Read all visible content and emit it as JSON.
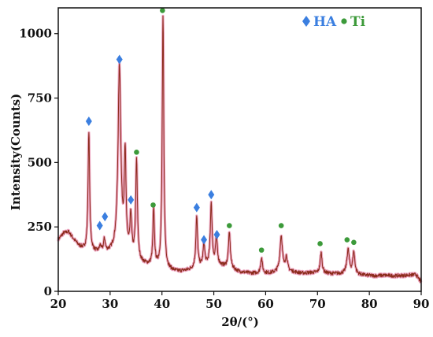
{
  "chart_data": {
    "type": "line",
    "title": "",
    "xlabel": "2θ/(°)",
    "ylabel": "Intensity(Counts)",
    "xlim": [
      20,
      90
    ],
    "ylim": [
      0,
      1100
    ],
    "x_ticks": [
      "20",
      "30",
      "40",
      "50",
      "60",
      "70",
      "80",
      "90"
    ],
    "y_ticks": [
      "0",
      "250",
      "500",
      "750",
      "1000"
    ],
    "grid": false,
    "legend_position": "top-right",
    "colors": {
      "line": "#8b2a1a",
      "shadow": "#e98fb0",
      "ha": "#3b7fe0",
      "ti": "#3c9a3a",
      "axis": "#111111"
    },
    "legend": [
      {
        "name": "HA",
        "marker": "diamond",
        "color": "#3b7fe0"
      },
      {
        "name": "Ti",
        "marker": "circle",
        "color": "#3c9a3a"
      }
    ],
    "baseline": [
      [
        20,
        200
      ],
      [
        21,
        225
      ],
      [
        22,
        230
      ],
      [
        23,
        200
      ],
      [
        24,
        175
      ],
      [
        25,
        160
      ],
      [
        27,
        150
      ],
      [
        29,
        145
      ],
      [
        31,
        150
      ],
      [
        33,
        140
      ],
      [
        35,
        110
      ],
      [
        37,
        100
      ],
      [
        39,
        90
      ],
      [
        41,
        80
      ],
      [
        43,
        75
      ],
      [
        45,
        80
      ],
      [
        47,
        90
      ],
      [
        49,
        100
      ],
      [
        51,
        100
      ],
      [
        53,
        90
      ],
      [
        55,
        75
      ],
      [
        57,
        70
      ],
      [
        59,
        70
      ],
      [
        61,
        70
      ],
      [
        63,
        75
      ],
      [
        65,
        75
      ],
      [
        67,
        70
      ],
      [
        69,
        72
      ],
      [
        71,
        70
      ],
      [
        73,
        68
      ],
      [
        75,
        68
      ],
      [
        77,
        65
      ],
      [
        79,
        62
      ],
      [
        81,
        60
      ],
      [
        83,
        62
      ],
      [
        85,
        60
      ],
      [
        87,
        62
      ],
      [
        89,
        65
      ],
      [
        90,
        35
      ]
    ],
    "peaks": [
      {
        "x": 25.9,
        "y": 620,
        "w": 0.18
      },
      {
        "x": 28.1,
        "y": 170,
        "w": 0.2
      },
      {
        "x": 28.9,
        "y": 195,
        "w": 0.2
      },
      {
        "x": 31.8,
        "y": 870,
        "w": 0.32
      },
      {
        "x": 32.9,
        "y": 510,
        "w": 0.2
      },
      {
        "x": 34.0,
        "y": 280,
        "w": 0.2
      },
      {
        "x": 35.1,
        "y": 500,
        "w": 0.2
      },
      {
        "x": 38.4,
        "y": 310,
        "w": 0.18
      },
      {
        "x": 40.2,
        "y": 1060,
        "w": 0.18
      },
      {
        "x": 46.7,
        "y": 285,
        "w": 0.2
      },
      {
        "x": 48.1,
        "y": 180,
        "w": 0.2
      },
      {
        "x": 49.5,
        "y": 340,
        "w": 0.2
      },
      {
        "x": 50.5,
        "y": 210,
        "w": 0.2
      },
      {
        "x": 53.0,
        "y": 225,
        "w": 0.22
      },
      {
        "x": 59.2,
        "y": 130,
        "w": 0.2
      },
      {
        "x": 63.0,
        "y": 215,
        "w": 0.28
      },
      {
        "x": 64.0,
        "y": 130,
        "w": 0.25
      },
      {
        "x": 70.7,
        "y": 150,
        "w": 0.22
      },
      {
        "x": 75.9,
        "y": 160,
        "w": 0.28
      },
      {
        "x": 77.0,
        "y": 150,
        "w": 0.25
      }
    ],
    "annotations": {
      "ha": [
        {
          "x": 25.9,
          "y": 660
        },
        {
          "x": 28.0,
          "y": 255
        },
        {
          "x": 29.0,
          "y": 290
        },
        {
          "x": 31.8,
          "y": 900
        },
        {
          "x": 34.0,
          "y": 355
        },
        {
          "x": 46.7,
          "y": 325
        },
        {
          "x": 48.1,
          "y": 200
        },
        {
          "x": 49.5,
          "y": 375
        },
        {
          "x": 50.6,
          "y": 220
        }
      ],
      "ti": [
        {
          "x": 35.1,
          "y": 540
        },
        {
          "x": 38.3,
          "y": 335
        },
        {
          "x": 40.1,
          "y": 1090
        },
        {
          "x": 53.0,
          "y": 255
        },
        {
          "x": 59.2,
          "y": 160
        },
        {
          "x": 63.0,
          "y": 255
        },
        {
          "x": 70.5,
          "y": 185
        },
        {
          "x": 75.7,
          "y": 200
        },
        {
          "x": 77.0,
          "y": 190
        }
      ]
    }
  }
}
